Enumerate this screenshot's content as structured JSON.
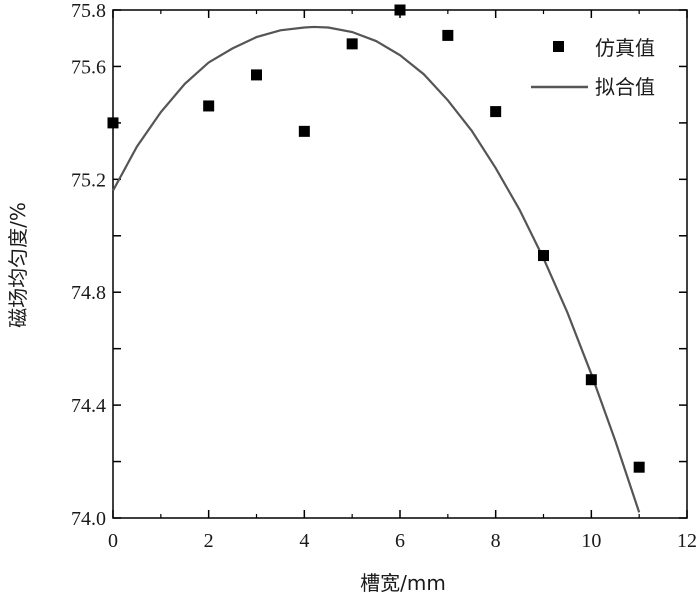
{
  "chart_data": {
    "type": "scatter",
    "xlabel": "槽宽/mm",
    "ylabel": "磁场均匀度/%",
    "xlim": [
      0,
      12
    ],
    "ylim": [
      74.0,
      75.8
    ],
    "xticks": [
      0,
      2,
      4,
      6,
      8,
      10,
      12
    ],
    "yticks": [
      74.0,
      74.4,
      74.8,
      75.2,
      75.6,
      75.8
    ],
    "xtick_labels": [
      "0",
      "2",
      "4",
      "6",
      "8",
      "10",
      "12"
    ],
    "ytick_labels": [
      "74.0",
      "74.4",
      "74.8",
      "75.2",
      "75.6",
      "75.8"
    ],
    "legend_position": "top-right",
    "grid": false,
    "series": [
      {
        "name": "仿真值",
        "kind": "scatter",
        "marker": "square",
        "color": "#000000",
        "x": [
          0,
          2,
          3,
          4,
          5,
          6,
          7,
          8,
          9,
          10,
          11
        ],
        "y": [
          75.4,
          75.46,
          75.57,
          75.37,
          75.68,
          75.8,
          75.71,
          75.44,
          74.93,
          74.49,
          74.18
        ]
      },
      {
        "name": "拟合值",
        "kind": "line",
        "color": "#555555",
        "x": [
          0,
          0.5,
          1,
          1.5,
          2,
          2.5,
          3,
          3.5,
          4,
          4.2,
          4.5,
          5,
          5.5,
          6,
          6.5,
          7,
          7.5,
          8,
          8.5,
          9,
          9.5,
          10,
          10.5,
          11
        ],
        "y": [
          75.16,
          75.316,
          75.438,
          75.538,
          75.614,
          75.664,
          75.704,
          75.728,
          75.738,
          75.74,
          75.738,
          75.722,
          75.69,
          75.64,
          75.572,
          75.48,
          75.372,
          75.24,
          75.092,
          74.92,
          74.728,
          74.51,
          74.274,
          74.02
        ]
      }
    ]
  }
}
